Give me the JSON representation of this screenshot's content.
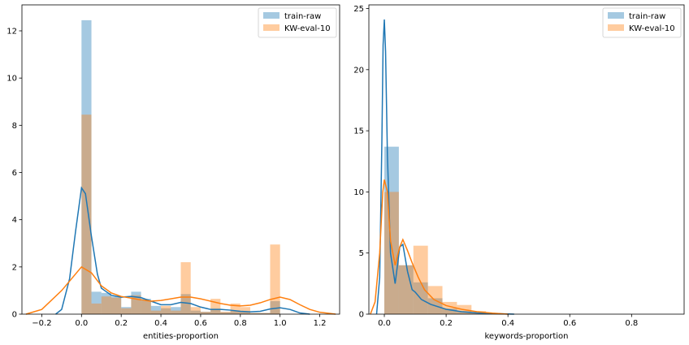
{
  "chart_data": [
    {
      "type": "histogram+kde",
      "xlabel": "entities-proportion",
      "ylabel": "",
      "xlim": [
        -0.3,
        1.3
      ],
      "ylim": [
        0,
        13.1
      ],
      "xticks": [
        -0.2,
        0.0,
        0.2,
        0.4,
        0.6,
        0.8,
        1.0,
        1.2
      ],
      "xtick_labels": [
        "−0.2",
        "0.0",
        "0.2",
        "0.4",
        "0.6",
        "0.8",
        "1.0",
        "1.2"
      ],
      "yticks": [
        0,
        2,
        4,
        6,
        8,
        10,
        12
      ],
      "ytick_labels": [
        "0",
        "2",
        "4",
        "6",
        "8",
        "10",
        "12"
      ],
      "bin_width": 0.05,
      "legend_position": "top-right",
      "series": [
        {
          "name": "train-raw",
          "color": "#1f77b4",
          "hist_bins": [
            [
              0.0,
              12.45
            ],
            [
              0.05,
              0.95
            ],
            [
              0.1,
              0.9
            ],
            [
              0.15,
              0.75
            ],
            [
              0.2,
              0.3
            ],
            [
              0.25,
              0.95
            ],
            [
              0.3,
              0.65
            ],
            [
              0.35,
              0.35
            ],
            [
              0.4,
              0.25
            ],
            [
              0.45,
              0.3
            ],
            [
              0.5,
              0.85
            ],
            [
              0.55,
              0.15
            ],
            [
              0.6,
              0.1
            ],
            [
              0.65,
              0.2
            ],
            [
              0.7,
              0.08
            ],
            [
              0.75,
              0.15
            ],
            [
              0.8,
              0.1
            ],
            [
              0.85,
              0.05
            ],
            [
              0.9,
              0.05
            ],
            [
              0.95,
              0.55
            ]
          ],
          "kde": [
            [
              -0.13,
              0.0
            ],
            [
              -0.1,
              0.2
            ],
            [
              -0.06,
              1.5
            ],
            [
              -0.03,
              3.5
            ],
            [
              0.0,
              5.35
            ],
            [
              0.02,
              5.1
            ],
            [
              0.05,
              3.3
            ],
            [
              0.08,
              1.7
            ],
            [
              0.1,
              1.1
            ],
            [
              0.15,
              0.8
            ],
            [
              0.2,
              0.72
            ],
            [
              0.25,
              0.75
            ],
            [
              0.3,
              0.7
            ],
            [
              0.35,
              0.55
            ],
            [
              0.4,
              0.4
            ],
            [
              0.45,
              0.4
            ],
            [
              0.5,
              0.5
            ],
            [
              0.55,
              0.45
            ],
            [
              0.6,
              0.3
            ],
            [
              0.65,
              0.2
            ],
            [
              0.7,
              0.2
            ],
            [
              0.75,
              0.17
            ],
            [
              0.8,
              0.12
            ],
            [
              0.85,
              0.1
            ],
            [
              0.9,
              0.12
            ],
            [
              0.95,
              0.22
            ],
            [
              1.0,
              0.27
            ],
            [
              1.05,
              0.2
            ],
            [
              1.1,
              0.05
            ],
            [
              1.15,
              0.0
            ]
          ]
        },
        {
          "name": "KW-eval-10",
          "color": "#ff7f0e",
          "hist_bins": [
            [
              0.0,
              8.45
            ],
            [
              0.05,
              0.45
            ],
            [
              0.1,
              0.75
            ],
            [
              0.15,
              0.7
            ],
            [
              0.2,
              0.25
            ],
            [
              0.25,
              0.8
            ],
            [
              0.3,
              0.55
            ],
            [
              0.35,
              0.15
            ],
            [
              0.4,
              0.35
            ],
            [
              0.45,
              0.15
            ],
            [
              0.5,
              2.2
            ],
            [
              0.55,
              0.3
            ],
            [
              0.6,
              0.1
            ],
            [
              0.65,
              0.65
            ],
            [
              0.7,
              0.1
            ],
            [
              0.75,
              0.45
            ],
            [
              0.8,
              0.3
            ],
            [
              0.85,
              0.05
            ],
            [
              0.9,
              0.05
            ],
            [
              0.95,
              2.95
            ]
          ],
          "kde": [
            [
              -0.28,
              0.0
            ],
            [
              -0.2,
              0.2
            ],
            [
              -0.1,
              1.0
            ],
            [
              0.0,
              2.0
            ],
            [
              0.05,
              1.75
            ],
            [
              0.1,
              1.2
            ],
            [
              0.15,
              0.9
            ],
            [
              0.2,
              0.75
            ],
            [
              0.25,
              0.68
            ],
            [
              0.3,
              0.6
            ],
            [
              0.35,
              0.55
            ],
            [
              0.4,
              0.58
            ],
            [
              0.45,
              0.65
            ],
            [
              0.5,
              0.72
            ],
            [
              0.55,
              0.72
            ],
            [
              0.6,
              0.65
            ],
            [
              0.65,
              0.55
            ],
            [
              0.7,
              0.45
            ],
            [
              0.75,
              0.38
            ],
            [
              0.8,
              0.35
            ],
            [
              0.85,
              0.38
            ],
            [
              0.9,
              0.48
            ],
            [
              0.95,
              0.62
            ],
            [
              1.0,
              0.72
            ],
            [
              1.05,
              0.62
            ],
            [
              1.1,
              0.4
            ],
            [
              1.15,
              0.2
            ],
            [
              1.2,
              0.08
            ],
            [
              1.28,
              0.0
            ]
          ]
        }
      ]
    },
    {
      "type": "histogram+kde",
      "xlabel": "keywords-proportion",
      "ylabel": "",
      "xlim": [
        -0.05,
        0.97
      ],
      "ylim": [
        0,
        25.3
      ],
      "xticks": [
        0.0,
        0.2,
        0.4,
        0.6,
        0.8
      ],
      "xtick_labels": [
        "0.0",
        "0.2",
        "0.4",
        "0.6",
        "0.8"
      ],
      "yticks": [
        0,
        5,
        10,
        15,
        20,
        25
      ],
      "ytick_labels": [
        "0",
        "5",
        "10",
        "15",
        "20",
        "25"
      ],
      "bin_width": 0.047,
      "legend_position": "top-right",
      "series": [
        {
          "name": "train-raw",
          "color": "#1f77b4",
          "hist_bins": [
            [
              0.0,
              13.7
            ],
            [
              0.047,
              4.0
            ],
            [
              0.094,
              2.6
            ],
            [
              0.141,
              1.3
            ],
            [
              0.188,
              0.45
            ],
            [
              0.235,
              0.25
            ],
            [
              0.282,
              0.1
            ]
          ],
          "kde": [
            [
              -0.025,
              0.0
            ],
            [
              -0.015,
              3.0
            ],
            [
              -0.008,
              14.0
            ],
            [
              -0.004,
              22.0
            ],
            [
              0.0,
              24.1
            ],
            [
              0.004,
              21.5
            ],
            [
              0.01,
              13.0
            ],
            [
              0.02,
              5.0
            ],
            [
              0.035,
              2.5
            ],
            [
              0.05,
              5.5
            ],
            [
              0.06,
              5.7
            ],
            [
              0.075,
              3.5
            ],
            [
              0.09,
              2.0
            ],
            [
              0.1,
              1.8
            ],
            [
              0.12,
              1.2
            ],
            [
              0.15,
              0.8
            ],
            [
              0.2,
              0.4
            ],
            [
              0.25,
              0.2
            ],
            [
              0.3,
              0.1
            ],
            [
              0.35,
              0.05
            ],
            [
              0.42,
              0.0
            ]
          ]
        },
        {
          "name": "KW-eval-10",
          "color": "#ff7f0e",
          "hist_bins": [
            [
              0.0,
              10.0
            ],
            [
              0.047,
              4.0
            ],
            [
              0.094,
              5.6
            ],
            [
              0.141,
              2.3
            ],
            [
              0.188,
              1.0
            ],
            [
              0.235,
              0.75
            ],
            [
              0.282,
              0.25
            ],
            [
              0.329,
              0.1
            ]
          ],
          "kde": [
            [
              -0.045,
              0.0
            ],
            [
              -0.03,
              1.0
            ],
            [
              -0.015,
              5.0
            ],
            [
              -0.005,
              10.0
            ],
            [
              0.0,
              11.0
            ],
            [
              0.01,
              10.0
            ],
            [
              0.02,
              6.0
            ],
            [
              0.035,
              4.0
            ],
            [
              0.05,
              5.5
            ],
            [
              0.06,
              6.1
            ],
            [
              0.075,
              5.2
            ],
            [
              0.09,
              4.2
            ],
            [
              0.11,
              3.0
            ],
            [
              0.13,
              2.0
            ],
            [
              0.16,
              1.2
            ],
            [
              0.2,
              0.7
            ],
            [
              0.25,
              0.4
            ],
            [
              0.3,
              0.2
            ],
            [
              0.35,
              0.08
            ],
            [
              0.4,
              0.0
            ]
          ]
        }
      ]
    }
  ]
}
